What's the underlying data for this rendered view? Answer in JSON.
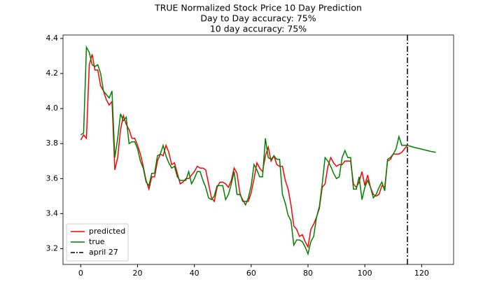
{
  "chart_data": {
    "type": "line",
    "title": "TRUE Normalized Stock Price 10 Day Prediction",
    "subtitles": [
      "Day to Day accuracy: 75%",
      "10 day accuracy: 75%"
    ],
    "x": [
      0,
      1,
      2,
      3,
      4,
      5,
      6,
      7,
      8,
      9,
      10,
      11,
      12,
      13,
      14,
      15,
      16,
      17,
      18,
      19,
      20,
      21,
      22,
      23,
      24,
      25,
      26,
      27,
      28,
      29,
      30,
      31,
      32,
      33,
      34,
      35,
      36,
      37,
      38,
      39,
      40,
      41,
      42,
      43,
      44,
      45,
      46,
      47,
      48,
      49,
      50,
      51,
      52,
      53,
      54,
      55,
      56,
      57,
      58,
      59,
      60,
      61,
      62,
      63,
      64,
      65,
      66,
      67,
      68,
      69,
      70,
      71,
      72,
      73,
      74,
      75,
      76,
      77,
      78,
      79,
      80,
      81,
      82,
      83,
      84,
      85,
      86,
      87,
      88,
      89,
      90,
      91,
      92,
      93,
      94,
      95,
      96,
      97,
      98,
      99,
      100,
      101,
      102,
      103,
      104,
      105,
      106,
      107,
      108,
      109,
      110,
      111,
      112,
      113,
      114,
      115,
      116,
      117,
      118,
      119,
      120,
      121,
      122,
      123,
      124,
      125
    ],
    "series": [
      {
        "name": "predicted",
        "color": "#ff0000",
        "values": [
          3.82,
          3.85,
          3.83,
          4.25,
          4.31,
          4.22,
          4.22,
          4.13,
          4.1,
          4.05,
          4.02,
          4.04,
          3.65,
          3.72,
          3.88,
          3.96,
          3.91,
          3.88,
          3.83,
          3.83,
          3.79,
          3.74,
          3.67,
          3.59,
          3.54,
          3.61,
          3.61,
          3.7,
          3.74,
          3.73,
          3.79,
          3.75,
          3.68,
          3.69,
          3.63,
          3.57,
          3.58,
          3.6,
          3.6,
          3.62,
          3.64,
          3.67,
          3.66,
          3.66,
          3.65,
          3.57,
          3.49,
          3.47,
          3.55,
          3.58,
          3.58,
          3.57,
          3.55,
          3.59,
          3.66,
          3.63,
          3.52,
          3.47,
          3.47,
          3.47,
          3.52,
          3.6,
          3.69,
          3.66,
          3.64,
          3.73,
          3.78,
          3.7,
          3.73,
          3.68,
          3.67,
          3.67,
          3.59,
          3.54,
          3.45,
          3.33,
          3.31,
          3.27,
          3.28,
          3.24,
          3.21,
          3.31,
          3.34,
          3.38,
          3.43,
          3.55,
          3.57,
          3.67,
          3.72,
          3.69,
          3.67,
          3.68,
          3.68,
          3.7,
          3.7,
          3.7,
          3.57,
          3.55,
          3.58,
          3.64,
          3.56,
          3.62,
          3.55,
          3.51,
          3.5,
          3.51,
          3.56,
          3.55,
          3.7,
          3.71,
          3.74,
          3.74,
          3.74,
          3.75,
          3.77,
          3.79,
          null,
          null,
          null,
          null,
          null,
          null,
          null,
          null,
          null,
          null
        ]
      },
      {
        "name": "true",
        "color": "#008000",
        "values": [
          3.85,
          3.86,
          4.35,
          4.32,
          4.25,
          4.24,
          4.25,
          4.2,
          4.1,
          4.08,
          4.06,
          4.1,
          3.72,
          3.83,
          3.97,
          3.93,
          3.95,
          3.8,
          3.81,
          3.81,
          3.77,
          3.7,
          3.66,
          3.58,
          3.56,
          3.63,
          3.63,
          3.73,
          3.74,
          3.79,
          3.73,
          3.69,
          3.66,
          3.67,
          3.61,
          3.59,
          3.59,
          3.59,
          3.64,
          3.57,
          3.6,
          3.64,
          3.64,
          3.59,
          3.55,
          3.49,
          3.48,
          3.5,
          3.56,
          3.56,
          3.56,
          3.48,
          3.51,
          3.57,
          3.64,
          3.51,
          3.51,
          3.48,
          3.45,
          3.49,
          3.56,
          3.68,
          3.65,
          3.61,
          3.61,
          3.83,
          3.72,
          3.71,
          3.73,
          3.71,
          3.71,
          3.51,
          3.46,
          3.39,
          3.36,
          3.22,
          3.25,
          3.25,
          3.24,
          3.21,
          3.17,
          3.24,
          3.27,
          3.38,
          3.44,
          3.57,
          3.72,
          3.7,
          3.67,
          3.63,
          3.6,
          3.61,
          3.72,
          3.76,
          3.72,
          3.72,
          3.54,
          3.54,
          3.61,
          3.48,
          3.55,
          3.59,
          3.55,
          3.49,
          3.51,
          3.55,
          3.58,
          3.53,
          3.71,
          3.72,
          3.74,
          3.77,
          3.84,
          3.79,
          3.79,
          3.79,
          3.785,
          3.78,
          3.776,
          3.772,
          3.768,
          3.764,
          3.76,
          3.756,
          3.753,
          3.75
        ]
      }
    ],
    "vline": {
      "x": 115,
      "label": "april 27",
      "color": "#000000"
    },
    "xlim": [
      -6.25,
      131.25
    ],
    "ylim": [
      3.11,
      4.42
    ],
    "xticks": [
      0,
      20,
      40,
      60,
      80,
      100,
      120
    ],
    "yticks": [
      3.2,
      3.4,
      3.6,
      3.8,
      {
        "value": 4,
        "label": "4.0"
      },
      4.2,
      4.4
    ],
    "legend": "lower left"
  }
}
